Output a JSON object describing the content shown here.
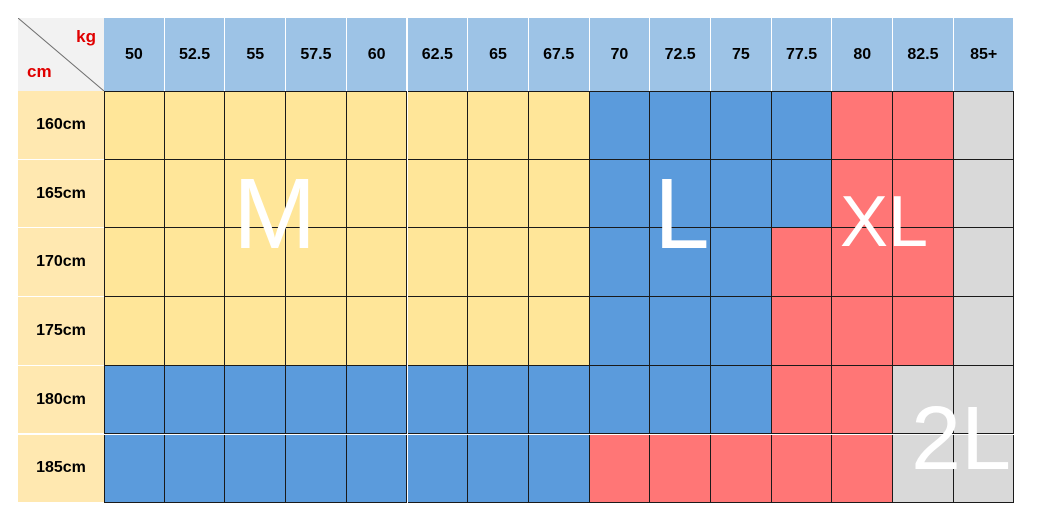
{
  "corner": {
    "weight_unit": "kg",
    "height_unit": "cm"
  },
  "weights": [
    "50",
    "52.5",
    "55",
    "57.5",
    "60",
    "62.5",
    "65",
    "67.5",
    "70",
    "72.5",
    "75",
    "77.5",
    "80",
    "82.5",
    "85+"
  ],
  "heights": [
    "160cm",
    "165cm",
    "170cm",
    "175cm",
    "180cm",
    "185cm"
  ],
  "sizes": {
    "M": {
      "label": "M",
      "color": "#ffe699"
    },
    "L": {
      "label": "L",
      "color": "#5b9bdc"
    },
    "XL": {
      "label": "XL",
      "color": "#ff7676"
    },
    "2L": {
      "label": "2L",
      "color": "#d9d9d9"
    }
  },
  "grid": [
    [
      "M",
      "M",
      "M",
      "M",
      "M",
      "M",
      "M",
      "M",
      "L",
      "L",
      "L",
      "L",
      "XL",
      "XL",
      "2L"
    ],
    [
      "M",
      "M",
      "M",
      "M",
      "M",
      "M",
      "M",
      "M",
      "L",
      "L",
      "L",
      "L",
      "XL",
      "XL",
      "2L"
    ],
    [
      "M",
      "M",
      "M",
      "M",
      "M",
      "M",
      "M",
      "M",
      "L",
      "L",
      "L",
      "XL",
      "XL",
      "XL",
      "2L"
    ],
    [
      "M",
      "M",
      "M",
      "M",
      "M",
      "M",
      "M",
      "M",
      "L",
      "L",
      "L",
      "XL",
      "XL",
      "XL",
      "2L"
    ],
    [
      "L",
      "L",
      "L",
      "L",
      "L",
      "L",
      "L",
      "L",
      "L",
      "L",
      "L",
      "XL",
      "XL",
      "2L",
      "2L"
    ],
    [
      "L",
      "L",
      "L",
      "L",
      "L",
      "L",
      "L",
      "L",
      "XL",
      "XL",
      "XL",
      "XL",
      "XL",
      "2L",
      "2L"
    ]
  ],
  "colors": {
    "header_bg": "#9dc3e6",
    "row_header_bg": "#ffe8b0",
    "unit_text": "#e00000"
  }
}
